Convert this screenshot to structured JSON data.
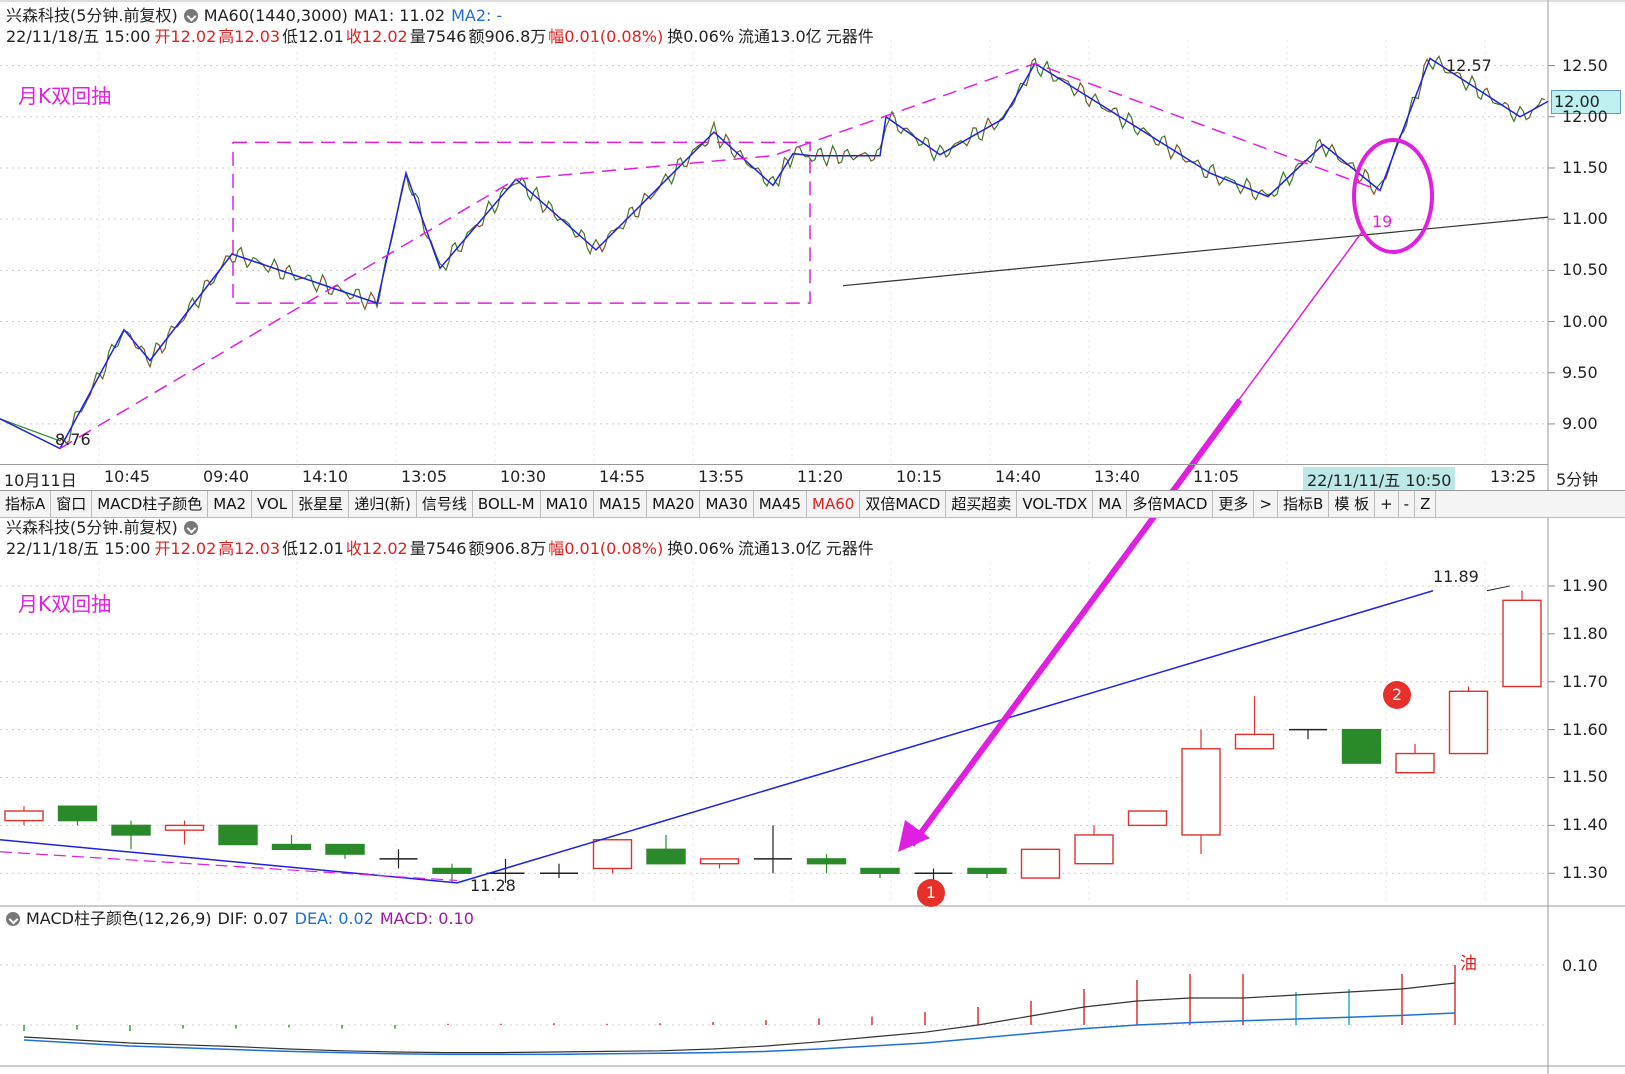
{
  "top_panel": {
    "title_line": {
      "name": "兴森科技(5分钟.前复权)",
      "ma60": "MA60(1440,3000)",
      "ma1": "MA1: 11.02",
      "ma2": "MA2: -"
    },
    "info_line": {
      "date": "22/11/18/五 15:00",
      "open": "开12.02",
      "high": "高12.03",
      "low": "低12.01",
      "close": "收12.02",
      "vol": "量7546",
      "amount": "额906.8万",
      "change": "幅0.01(0.08%)",
      "turnover": "换0.06%",
      "float": "流通13.0亿",
      "sector": "元器件"
    },
    "annotation": "月K双回抽",
    "y_ticks": [
      "12.50",
      "12.00",
      "11.50",
      "11.00",
      "10.50",
      "10.00",
      "9.50",
      "9.00"
    ],
    "current_price": "12.00",
    "low_label": "8.76",
    "high_label": "12.57",
    "circle_label": "19"
  },
  "time_axis": {
    "labels": [
      "10月11日",
      "10:45",
      "09:40",
      "14:10",
      "13:05",
      "10:30",
      "14:55",
      "13:55",
      "11:20",
      "10:15",
      "14:40",
      "13:40",
      "11:05",
      "22/11/11/五 10:50",
      "13:25"
    ],
    "period": "5分钟"
  },
  "toolbar": {
    "items": [
      "指标A",
      "窗口",
      "MACD柱子颜色",
      "MA2",
      "VOL",
      "张星星",
      "递归(新)",
      "信号线",
      "BOLL-M",
      "MA10",
      "MA15",
      "MA20",
      "MA30",
      "MA45",
      "MA60",
      "双倍MACD",
      "超买超卖",
      "VOL-TDX",
      "MA",
      "多倍MACD",
      "更多",
      ">",
      "指标B",
      "模 板",
      "+",
      "-",
      "Z"
    ],
    "active": "MA60"
  },
  "bottom_panel": {
    "title": "兴森科技(5分钟.前复权)",
    "annotation": "月K双回抽",
    "y_ticks": [
      "11.90",
      "11.80",
      "11.70",
      "11.60",
      "11.50",
      "11.40",
      "11.30"
    ],
    "low_label": "11.28",
    "high_label": "11.89",
    "badge1": "1",
    "badge2": "2"
  },
  "macd_panel": {
    "title": "MACD柱子颜色(12,26,9)",
    "dif": "DIF: 0.07",
    "dea": "DEA: 0.02",
    "macd": "MACD: 0.10",
    "y_tick": "0.10",
    "oil_label": "油"
  },
  "chart_data": [
    {
      "type": "line",
      "title": "兴森科技(5分钟.前复权)",
      "ylim": [
        8.55,
        12.75
      ],
      "zigzag_pivots": [
        8.76,
        9.92,
        9.62,
        10.66,
        10.18,
        11.45,
        10.52,
        11.39,
        10.7,
        11.85,
        11.33,
        11.64,
        11.62,
        11.62,
        12.0,
        11.63,
        11.98,
        12.52,
        11.45,
        11.22,
        11.73,
        11.28,
        12.57,
        12.0,
        12.15
      ],
      "range_box": [
        10.18,
        11.75
      ],
      "ma_line": [
        10.35,
        11.02
      ],
      "current": 12.0
    },
    {
      "type": "candlestick",
      "ylim": [
        11.24,
        11.95
      ],
      "candles": [
        {
          "o": 11.41,
          "c": 11.43,
          "h": 11.44,
          "l": 11.4
        },
        {
          "o": 11.44,
          "c": 11.41,
          "h": 11.44,
          "l": 11.4
        },
        {
          "o": 11.4,
          "c": 11.38,
          "h": 11.41,
          "l": 11.35
        },
        {
          "o": 11.39,
          "c": 11.4,
          "h": 11.41,
          "l": 11.36
        },
        {
          "o": 11.4,
          "c": 11.36,
          "h": 11.4,
          "l": 11.36
        },
        {
          "o": 11.36,
          "c": 11.35,
          "h": 11.38,
          "l": 11.35
        },
        {
          "o": 11.36,
          "c": 11.34,
          "h": 11.36,
          "l": 11.33
        },
        {
          "o": 11.33,
          "c": 11.33,
          "h": 11.35,
          "l": 11.31
        },
        {
          "o": 11.31,
          "c": 11.3,
          "h": 11.32,
          "l": 11.28
        },
        {
          "o": 11.3,
          "c": 11.3,
          "h": 11.33,
          "l": 11.28
        },
        {
          "o": 11.3,
          "c": 11.3,
          "h": 11.32,
          "l": 11.29
        },
        {
          "o": 11.31,
          "c": 11.37,
          "h": 11.37,
          "l": 11.3
        },
        {
          "o": 11.35,
          "c": 11.32,
          "h": 11.38,
          "l": 11.32
        },
        {
          "o": 11.32,
          "c": 11.33,
          "h": 11.33,
          "l": 11.31
        },
        {
          "o": 11.33,
          "c": 11.33,
          "h": 11.4,
          "l": 11.3
        },
        {
          "o": 11.33,
          "c": 11.32,
          "h": 11.34,
          "l": 11.3
        },
        {
          "o": 11.31,
          "c": 11.3,
          "h": 11.31,
          "l": 11.29
        },
        {
          "o": 11.3,
          "c": 11.3,
          "h": 11.31,
          "l": 11.28
        },
        {
          "o": 11.31,
          "c": 11.3,
          "h": 11.31,
          "l": 11.29
        },
        {
          "o": 11.29,
          "c": 11.35,
          "h": 11.35,
          "l": 11.29
        },
        {
          "o": 11.32,
          "c": 11.38,
          "h": 11.4,
          "l": 11.32
        },
        {
          "o": 11.4,
          "c": 11.43,
          "h": 11.43,
          "l": 11.4
        },
        {
          "o": 11.38,
          "c": 11.56,
          "h": 11.6,
          "l": 11.34
        },
        {
          "o": 11.56,
          "c": 11.59,
          "h": 11.67,
          "l": 11.56
        },
        {
          "o": 11.6,
          "c": 11.6,
          "h": 11.6,
          "l": 11.58
        },
        {
          "o": 11.6,
          "c": 11.53,
          "h": 11.6,
          "l": 11.53
        },
        {
          "o": 11.51,
          "c": 11.55,
          "h": 11.57,
          "l": 11.51
        },
        {
          "o": 11.55,
          "c": 11.68,
          "h": 11.69,
          "l": 11.55
        },
        {
          "o": 11.69,
          "c": 11.87,
          "h": 11.89,
          "l": 11.69
        }
      ],
      "trend_line": [
        11.28,
        11.89
      ]
    },
    {
      "type": "bar",
      "title": "MACD柱子颜色(12,26,9)",
      "ylim": [
        -0.06,
        0.12
      ],
      "bars": [
        -0.01,
        -0.008,
        -0.01,
        -0.006,
        -0.006,
        -0.004,
        -0.006,
        -0.006,
        0.002,
        0.002,
        0.003,
        0.002,
        0.003,
        0.005,
        0.008,
        0.011,
        0.014,
        0.022,
        0.03,
        0.04,
        0.06,
        0.075,
        0.085,
        0.085,
        0.055,
        0.06,
        0.085,
        0.1
      ],
      "dif": [
        -0.02,
        -0.025,
        -0.03,
        -0.033,
        -0.036,
        -0.04,
        -0.043,
        -0.045,
        -0.046,
        -0.046,
        -0.045,
        -0.044,
        -0.043,
        -0.04,
        -0.035,
        -0.028,
        -0.02,
        -0.012,
        0.0,
        0.015,
        0.03,
        0.04,
        0.045,
        0.045,
        0.05,
        0.055,
        0.06,
        0.07
      ],
      "dea": [
        -0.025,
        -0.03,
        -0.035,
        -0.038,
        -0.041,
        -0.044,
        -0.046,
        -0.048,
        -0.049,
        -0.049,
        -0.049,
        -0.048,
        -0.047,
        -0.046,
        -0.044,
        -0.04,
        -0.035,
        -0.03,
        -0.022,
        -0.014,
        -0.006,
        0.0,
        0.004,
        0.007,
        0.01,
        0.013,
        0.016,
        0.02
      ]
    }
  ]
}
